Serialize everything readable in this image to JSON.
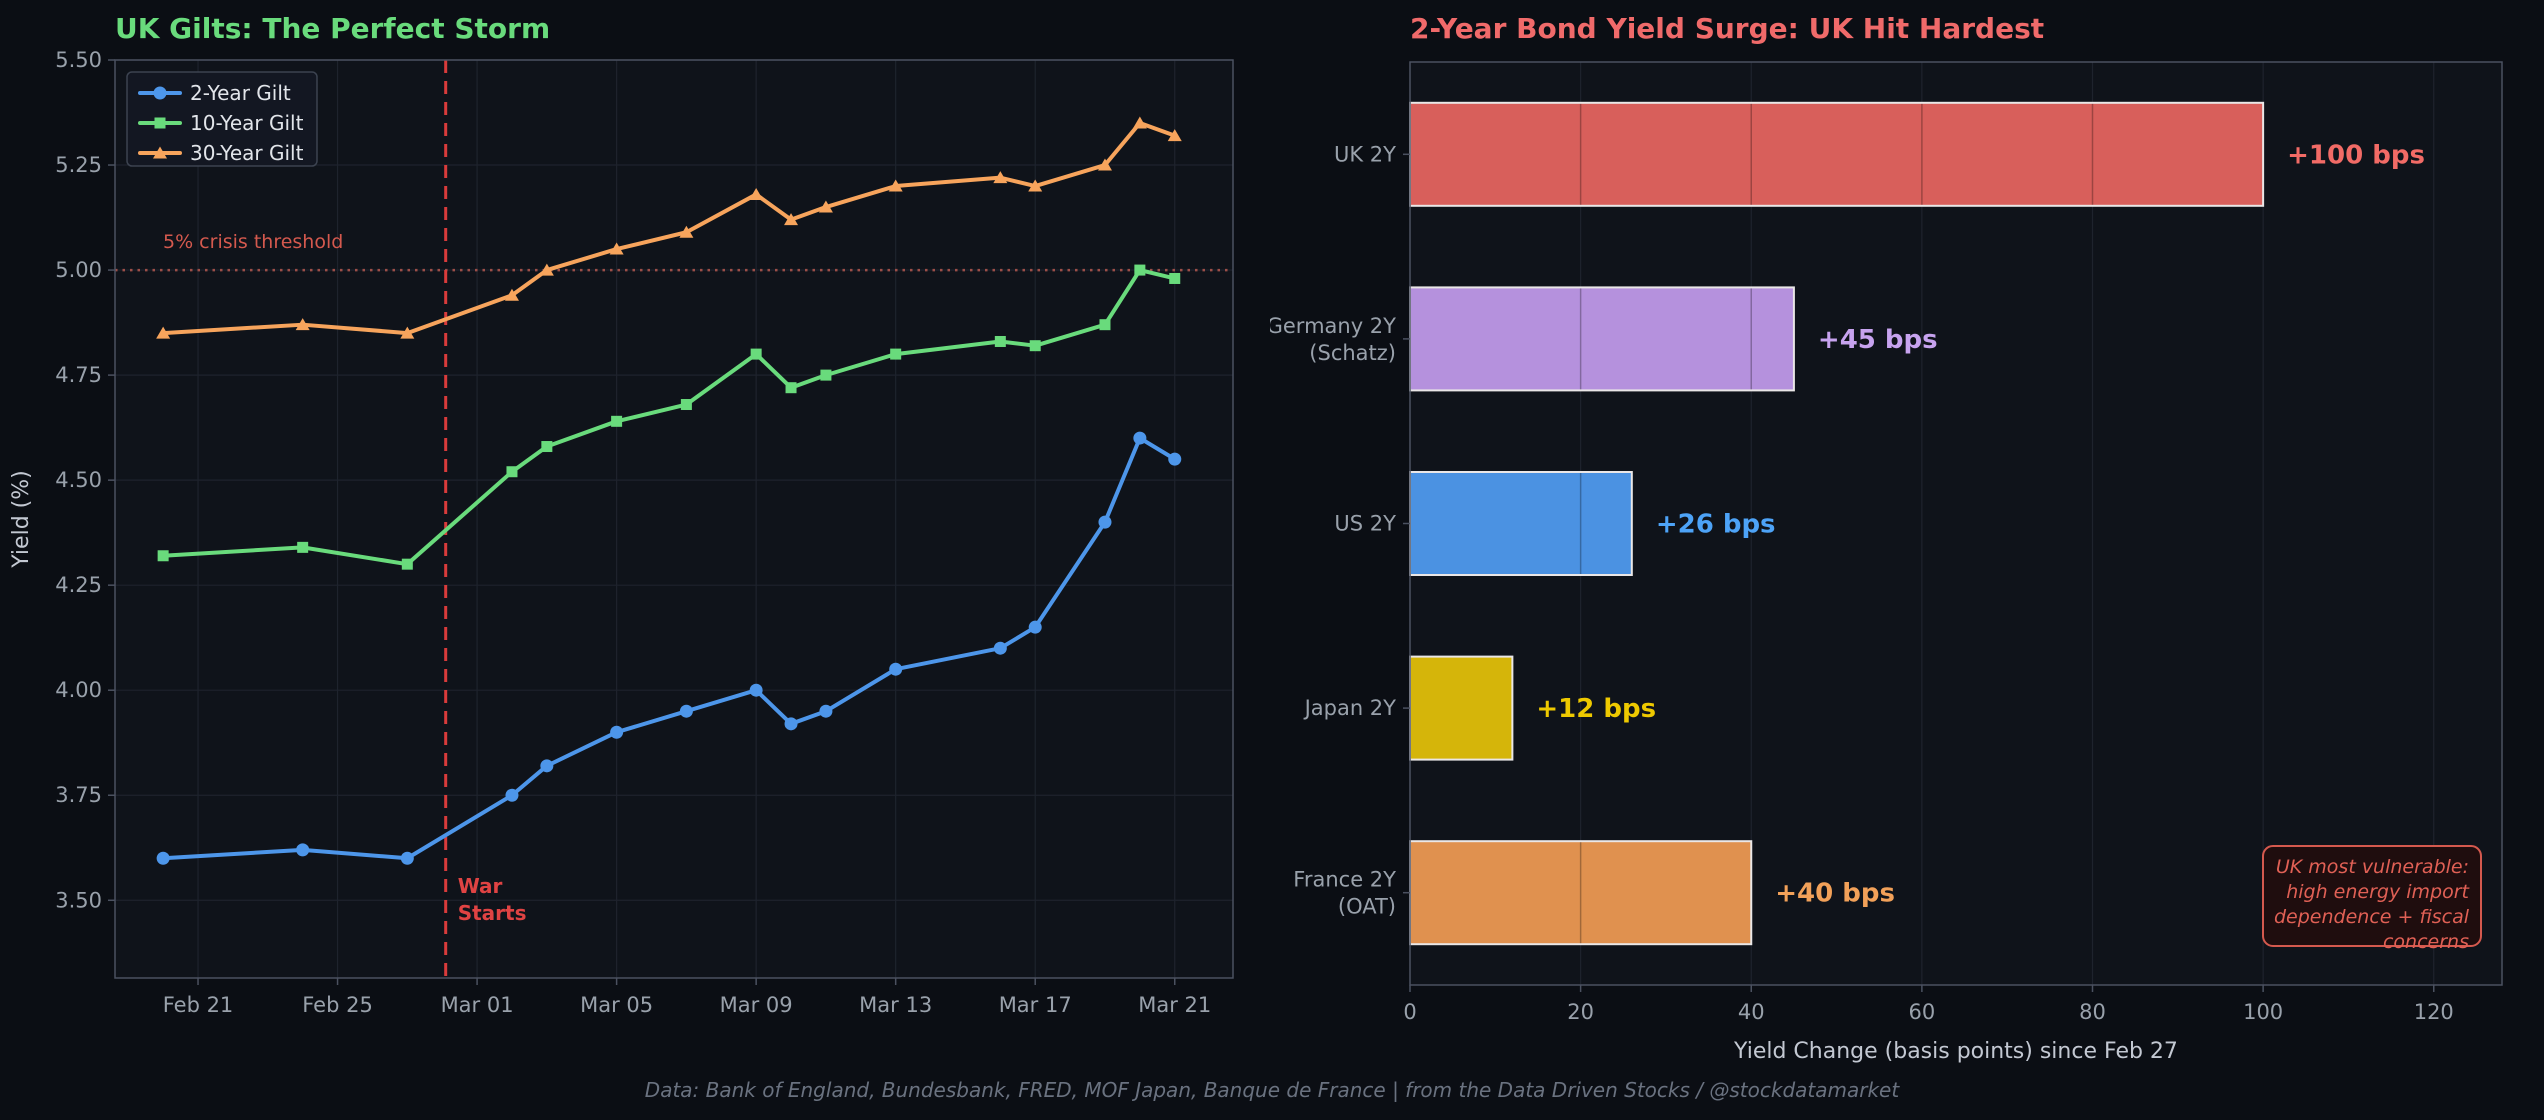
{
  "figure": {
    "footer": "Data: Bank of England, Bundesbank, FRED, MOF Japan, Banque de France  |  from the Data Driven Stocks / @stockdatamarket"
  },
  "colors": {
    "background": "#0b0e14",
    "plot_bg": "#0f131a",
    "grid": "#1e232d",
    "frame": "#4b5160",
    "tick_label": "#99a1ab",
    "axis_label": "#c3c8d2",
    "legend_bg": "#131722",
    "legend_border": "#3c4350",
    "legend_text": "#e2e5ea",
    "footer_text": "#6a7280"
  },
  "chart_data": [
    {
      "id": "uk-gilts",
      "type": "line",
      "title": "UK Gilts: The Perfect Storm",
      "title_color": "#69db7c",
      "ylabel": "Yield (%)",
      "ylim": [
        3.315,
        5.5
      ],
      "yticks": [
        3.5,
        3.75,
        4.0,
        4.25,
        4.5,
        4.75,
        5.0,
        5.25,
        5.5
      ],
      "ytick_labels": [
        "3.50",
        "3.75",
        "4.00",
        "4.25",
        "4.50",
        "4.75",
        "5.00",
        "5.25",
        "5.50"
      ],
      "x_tick_labels": [
        "Feb 21",
        "Feb 25",
        "Mar 01",
        "Mar 05",
        "Mar 09",
        "Mar 13",
        "Mar 17",
        "Mar 21"
      ],
      "x_tick_offsets": [
        1,
        5,
        9,
        13,
        17,
        21,
        25,
        29
      ],
      "xlim_offsets": [
        -1.38,
        30.67
      ],
      "dates": [
        "Feb 20",
        "Feb 24",
        "Feb 27",
        "Mar 02",
        "Mar 03",
        "Mar 05",
        "Mar 07",
        "Mar 09",
        "Mar 10",
        "Mar 11",
        "Mar 13",
        "Mar 16",
        "Mar 17",
        "Mar 19",
        "Mar 20",
        "Mar 21"
      ],
      "day_offsets": [
        0,
        4,
        7,
        10,
        11,
        13,
        15,
        17,
        18,
        19,
        21,
        24,
        25,
        27,
        28,
        29
      ],
      "series": [
        {
          "name": "2-Year Gilt",
          "color": "#4d96ea",
          "marker": "circle",
          "values": [
            3.6,
            3.62,
            3.6,
            3.75,
            3.82,
            3.9,
            3.95,
            4.0,
            3.92,
            3.95,
            4.05,
            4.1,
            4.15,
            4.4,
            4.6,
            4.55
          ]
        },
        {
          "name": "10-Year Gilt",
          "color": "#69db7c",
          "marker": "square",
          "values": [
            4.32,
            4.34,
            4.3,
            4.52,
            4.58,
            4.64,
            4.68,
            4.8,
            4.72,
            4.75,
            4.8,
            4.83,
            4.82,
            4.87,
            5.0,
            4.98
          ]
        },
        {
          "name": "30-Year Gilt",
          "color": "#f7a45c",
          "marker": "triangle",
          "values": [
            4.85,
            4.87,
            4.85,
            4.94,
            5.0,
            5.05,
            5.09,
            5.18,
            5.12,
            5.15,
            5.2,
            5.22,
            5.2,
            5.25,
            5.35,
            5.32
          ]
        }
      ],
      "threshold": {
        "value": 5.0,
        "label": "5% crisis threshold",
        "label_color": "#d4594e",
        "line_color": "#9e4f48"
      },
      "event": {
        "day_offset": 8.1,
        "lines": [
          "War",
          "Starts"
        ],
        "color": "#d93b3b",
        "text_color": "#e04343"
      }
    },
    {
      "id": "bond-surge",
      "type": "bar",
      "title": "2-Year Bond Yield Surge: UK Hit Hardest",
      "title_color": "#f06a6a",
      "xlabel": "Yield Change (basis points) since Feb 27",
      "categories": [
        [
          "UK 2Y"
        ],
        [
          "Germany 2Y",
          "(Schatz)"
        ],
        [
          "US 2Y"
        ],
        [
          "Japan 2Y"
        ],
        [
          "France 2Y",
          "(OAT)"
        ]
      ],
      "values": [
        100,
        45,
        26,
        12,
        40
      ],
      "value_labels": [
        "+100 bps",
        "+45 bps",
        "+26 bps",
        "+12 bps",
        "+40 bps"
      ],
      "bar_colors": [
        "#d85f5b",
        "#b591dd",
        "#4b92e2",
        "#d5b50a",
        "#e0914f"
      ],
      "value_label_colors": [
        "#f26b66",
        "#c7a3ef",
        "#4da3f7",
        "#eec900",
        "#f2a159"
      ],
      "bar_edge_color": "#eae7e7",
      "xticks": [
        0,
        20,
        40,
        60,
        80,
        100,
        120
      ],
      "xlim": [
        0,
        128
      ],
      "legend_position": "none",
      "grid": "vertical-only",
      "annotation": {
        "lines": [
          "UK most vulnerable:",
          "high energy import",
          "dependence + fiscal",
          "concerns"
        ],
        "text_color": "#e06055",
        "border_color": "#d4594e",
        "bg_color": "#1f0d0e"
      }
    }
  ]
}
